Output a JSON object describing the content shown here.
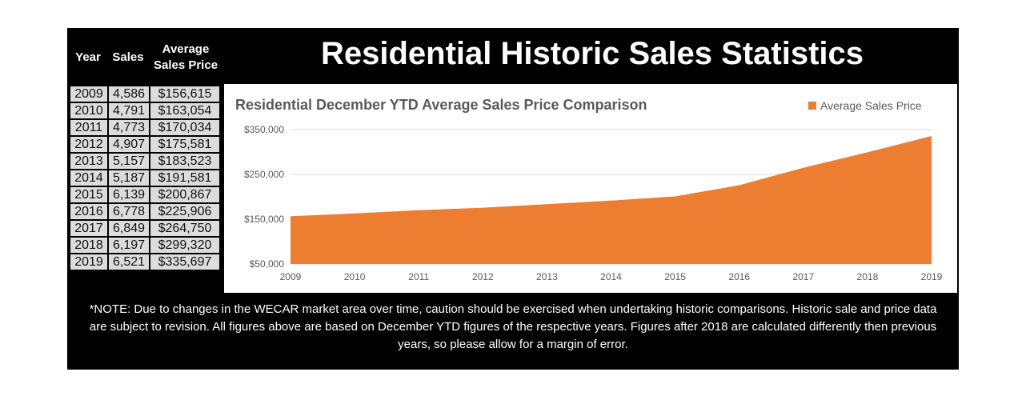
{
  "title": "Residential Historic Sales Statistics",
  "table": {
    "headers": [
      "Year",
      "Sales",
      "Average Sales Price"
    ],
    "rows": [
      [
        "2009",
        "4,586",
        "$156,615"
      ],
      [
        "2010",
        "4,791",
        "$163,054"
      ],
      [
        "2011",
        "4,773",
        "$170,034"
      ],
      [
        "2012",
        "4,907",
        "$175,581"
      ],
      [
        "2013",
        "5,157",
        "$183,523"
      ],
      [
        "2014",
        "5,187",
        "$191,581"
      ],
      [
        "2015",
        "6,139",
        "$200,867"
      ],
      [
        "2016",
        "6,778",
        "$225,906"
      ],
      [
        "2017",
        "6,849",
        "$264,750"
      ],
      [
        "2018",
        "6,197",
        "$299,320"
      ],
      [
        "2019",
        "6,521",
        "$335,697"
      ]
    ]
  },
  "note": "*NOTE: Due to changes in the WECAR market area over time, caution should be exercised when undertaking historic comparisons. Historic sale and price data are subject to revision. All figures above are based on December YTD figures of the respective years. Figures after 2018 are calculated differently then previous years, so please allow for a margin of error.",
  "chart_data": {
    "type": "area",
    "title": "Residential December YTD Average Sales Price Comparison",
    "x": [
      2009,
      2010,
      2011,
      2012,
      2013,
      2014,
      2015,
      2016,
      2017,
      2018,
      2019
    ],
    "series": [
      {
        "name": "Average Sales Price",
        "values": [
          156615,
          163054,
          170034,
          175581,
          183523,
          191581,
          200867,
          225906,
          264750,
          299320,
          335697
        ],
        "color": "#ed7d31"
      }
    ],
    "ylim": [
      50000,
      350000
    ],
    "yticks": [
      50000,
      150000,
      250000,
      350000
    ],
    "ytick_labels": [
      "$50,000",
      "$150,000",
      "$250,000",
      "$350,000"
    ],
    "grid": true,
    "legend": "top-right"
  }
}
